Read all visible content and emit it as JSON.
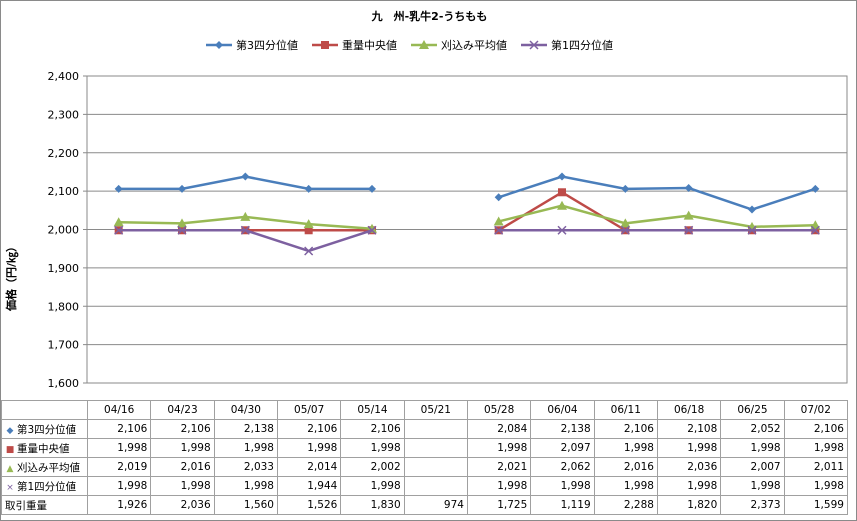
{
  "chart_data": {
    "type": "line",
    "title": "九　州-乳牛2-うちもも",
    "ylabel": "価格（円/㎏）",
    "ylim": [
      1600,
      2400
    ],
    "yticks": [
      "1,600",
      "1,700",
      "1,800",
      "1,900",
      "2,000",
      "2,100",
      "2,200",
      "2,300",
      "2,400"
    ],
    "grid": "horizontal",
    "legend_position": "top",
    "categories": [
      "04/16",
      "04/23",
      "04/30",
      "05/07",
      "05/14",
      "05/21",
      "05/28",
      "06/04",
      "06/11",
      "06/18",
      "06/25",
      "07/02"
    ],
    "series": [
      {
        "name": "第3四分位値",
        "color": "#4a7ebb",
        "marker": "diamond",
        "marker_glyph": "◆",
        "values": [
          2106,
          2106,
          2138,
          2106,
          2106,
          null,
          2084,
          2138,
          2106,
          2108,
          2052,
          2106
        ],
        "labels": [
          "2,106",
          "2,106",
          "2,138",
          "2,106",
          "2,106",
          "",
          "2,084",
          "2,138",
          "2,106",
          "2,108",
          "2,052",
          "2,106"
        ]
      },
      {
        "name": "重量中央値",
        "color": "#be4b48",
        "marker": "square",
        "marker_glyph": "■",
        "values": [
          1998,
          1998,
          1998,
          1998,
          1998,
          null,
          1998,
          2097,
          1998,
          1998,
          1998,
          1998
        ],
        "labels": [
          "1,998",
          "1,998",
          "1,998",
          "1,998",
          "1,998",
          "",
          "1,998",
          "2,097",
          "1,998",
          "1,998",
          "1,998",
          "1,998"
        ]
      },
      {
        "name": "刈込み平均値",
        "color": "#98b954",
        "marker": "triangle",
        "marker_glyph": "▲",
        "values": [
          2019,
          2016,
          2033,
          2014,
          2002,
          null,
          2021,
          2062,
          2016,
          2036,
          2007,
          2011
        ],
        "labels": [
          "2,019",
          "2,016",
          "2,033",
          "2,014",
          "2,002",
          "",
          "2,021",
          "2,062",
          "2,016",
          "2,036",
          "2,007",
          "2,011"
        ]
      },
      {
        "name": "第1四分位値",
        "color": "#7d60a0",
        "marker": "x",
        "marker_glyph": "×",
        "values": [
          1998,
          1998,
          1998,
          1944,
          1998,
          null,
          1998,
          1998,
          1998,
          1998,
          1998,
          1998
        ],
        "labels": [
          "1,998",
          "1,998",
          "1,998",
          "1,944",
          "1,998",
          "",
          "1,998",
          "1,998",
          "1,998",
          "1,998",
          "1,998",
          "1,998"
        ]
      }
    ],
    "extra_rows": [
      {
        "name": "取引重量",
        "values": [
          1926,
          2036,
          1560,
          1526,
          1830,
          974,
          1725,
          1119,
          2288,
          1820,
          2373,
          1599
        ],
        "labels": [
          "1,926",
          "2,036",
          "1,560",
          "1,526",
          "1,830",
          "974",
          "1,725",
          "1,119",
          "2,288",
          "1,820",
          "2,373",
          "1,599"
        ]
      }
    ]
  }
}
